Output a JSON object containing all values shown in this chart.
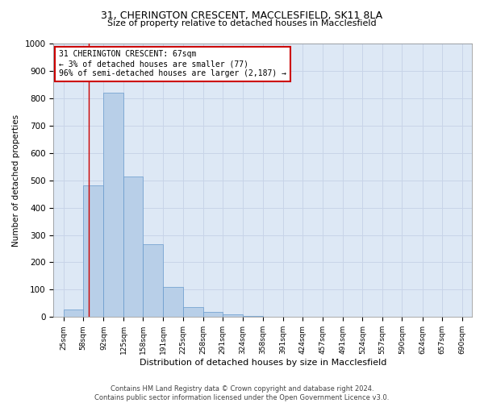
{
  "title1": "31, CHERINGTON CRESCENT, MACCLESFIELD, SK11 8LA",
  "title2": "Size of property relative to detached houses in Macclesfield",
  "xlabel": "Distribution of detached houses by size in Macclesfield",
  "ylabel": "Number of detached properties",
  "footer1": "Contains HM Land Registry data © Crown copyright and database right 2024.",
  "footer2": "Contains public sector information licensed under the Open Government Licence v3.0.",
  "annotation_line1": "31 CHERINGTON CRESCENT: 67sqm",
  "annotation_line2": "← 3% of detached houses are smaller (77)",
  "annotation_line3": "96% of semi-detached houses are larger (2,187) →",
  "property_size": 67,
  "bin_edges": [
    25,
    58,
    92,
    125,
    158,
    191,
    225,
    258,
    291,
    324,
    358,
    391,
    424,
    457,
    491,
    524,
    557,
    590,
    624,
    657,
    690
  ],
  "values": [
    28,
    480,
    820,
    515,
    265,
    110,
    37,
    18,
    10,
    5,
    0,
    0,
    0,
    0,
    0,
    0,
    0,
    0,
    0,
    0
  ],
  "bar_color": "#b8cfe8",
  "bar_edge_color": "#6699cc",
  "grid_color": "#c8d4e8",
  "bg_color": "#dde8f5",
  "annotation_box_color": "#cc0000",
  "vline_color": "#cc0000",
  "ylim": [
    0,
    1000
  ],
  "yticks": [
    0,
    100,
    200,
    300,
    400,
    500,
    600,
    700,
    800,
    900,
    1000
  ],
  "title1_fontsize": 9,
  "title2_fontsize": 8,
  "xlabel_fontsize": 8,
  "ylabel_fontsize": 7.5,
  "footer_fontsize": 6,
  "annotation_fontsize": 7
}
